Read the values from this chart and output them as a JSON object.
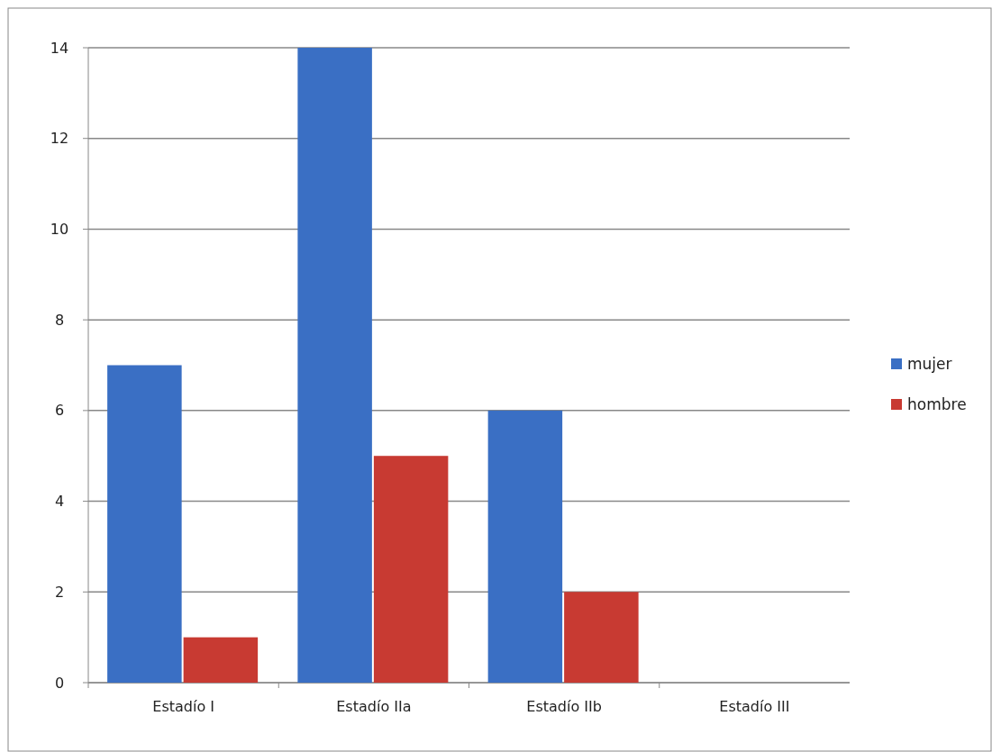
{
  "chart_data": {
    "type": "bar",
    "categories": [
      "Estadío I",
      "Estadío IIa",
      "Estadío IIb",
      "Estadío III"
    ],
    "series": [
      {
        "name": "mujer",
        "color": "#3a6fc4",
        "values": [
          7,
          14,
          6,
          0
        ]
      },
      {
        "name": "hombre",
        "color": "#c83a32",
        "values": [
          1,
          5,
          2,
          0
        ]
      }
    ],
    "ylim": [
      0,
      14
    ],
    "yticks": [
      0,
      2,
      4,
      6,
      8,
      10,
      12,
      14
    ],
    "grid": "y",
    "legend": "right"
  }
}
